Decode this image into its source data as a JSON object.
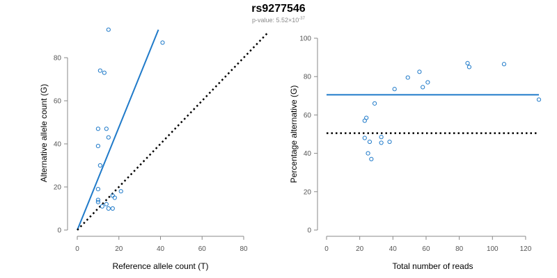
{
  "title": "rs9277546",
  "subtitle": {
    "prefix": "p-value: 5.52×10",
    "exponent": "-37"
  },
  "chart_data": [
    {
      "type": "scatter",
      "xlabel": "Reference allele count (T)",
      "ylabel": "Alternative allele count (G)",
      "xlim": [
        0,
        80
      ],
      "ylim": [
        0,
        90
      ],
      "xticks": [
        0,
        20,
        40,
        60,
        80
      ],
      "yticks": [
        0,
        20,
        40,
        60,
        80
      ],
      "grid": false,
      "points": [
        {
          "x": 15,
          "y": 93
        },
        {
          "x": 41,
          "y": 87
        },
        {
          "x": 11,
          "y": 74
        },
        {
          "x": 13,
          "y": 73
        },
        {
          "x": 10,
          "y": 47
        },
        {
          "x": 14,
          "y": 47
        },
        {
          "x": 15,
          "y": 43
        },
        {
          "x": 10,
          "y": 39
        },
        {
          "x": 11,
          "y": 30
        },
        {
          "x": 10,
          "y": 19
        },
        {
          "x": 21,
          "y": 18
        },
        {
          "x": 17,
          "y": 16
        },
        {
          "x": 18,
          "y": 15
        },
        {
          "x": 10,
          "y": 14
        },
        {
          "x": 10,
          "y": 13
        },
        {
          "x": 14,
          "y": 12
        },
        {
          "x": 12,
          "y": 11
        },
        {
          "x": 15,
          "y": 10
        },
        {
          "x": 17,
          "y": 10
        }
      ],
      "lines": [
        {
          "style": "solid",
          "color": "#1f7ac9",
          "from": [
            0,
            0
          ],
          "to": [
            39,
            93
          ]
        },
        {
          "style": "dotted",
          "color": "#000000",
          "from": [
            0,
            0
          ],
          "to": [
            92,
            92
          ]
        }
      ]
    },
    {
      "type": "scatter",
      "xlabel": "Total number of reads",
      "ylabel": "Percentage alternative (G)",
      "xlim": [
        0,
        128
      ],
      "ylim": [
        0,
        100
      ],
      "xticks": [
        0,
        20,
        40,
        60,
        80,
        100,
        120
      ],
      "yticks": [
        0,
        20,
        40,
        60,
        80,
        100
      ],
      "grid": false,
      "points": [
        {
          "x": 23,
          "y": 57
        },
        {
          "x": 24,
          "y": 58.5
        },
        {
          "x": 23,
          "y": 48
        },
        {
          "x": 26,
          "y": 46
        },
        {
          "x": 25,
          "y": 40
        },
        {
          "x": 27,
          "y": 37
        },
        {
          "x": 29,
          "y": 66
        },
        {
          "x": 33,
          "y": 45.5
        },
        {
          "x": 33,
          "y": 48.5
        },
        {
          "x": 38,
          "y": 46
        },
        {
          "x": 41,
          "y": 73.5
        },
        {
          "x": 49,
          "y": 79.5
        },
        {
          "x": 56,
          "y": 82.5
        },
        {
          "x": 58,
          "y": 74.5
        },
        {
          "x": 61,
          "y": 77
        },
        {
          "x": 85,
          "y": 87
        },
        {
          "x": 86,
          "y": 85
        },
        {
          "x": 107,
          "y": 86.5
        },
        {
          "x": 128,
          "y": 68
        }
      ],
      "lines": [
        {
          "style": "solid",
          "color": "#1f7ac9",
          "from": [
            0,
            70.5
          ],
          "to": [
            128,
            70.5
          ]
        },
        {
          "style": "dotted",
          "color": "#000000",
          "from": [
            0,
            50.5
          ],
          "to": [
            128,
            50.5
          ]
        }
      ]
    }
  ]
}
